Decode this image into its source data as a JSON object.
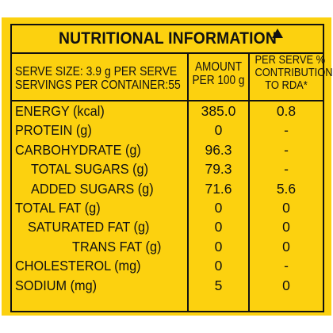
{
  "title": "NUTRITIONAL INFORMATION",
  "header": {
    "serve_size": "SERVE SIZE: 3.9 g PER SERVE",
    "servings": "SERVINGS PER CONTAINER:55",
    "amount_line1": "AMOUNT",
    "amount_line2": "PER 100 g",
    "rda_line1": "PER SERVE %",
    "rda_line2": "CONTRIBUTION",
    "rda_line3": "TO RDA*"
  },
  "rows": [
    {
      "nutrient": "ENERGY (kcal)",
      "amount": "385.0",
      "rda": "0.8"
    },
    {
      "nutrient": "PROTEIN (g)",
      "amount": "0",
      "rda": "-"
    },
    {
      "nutrient": "CARBOHYDRATE (g)",
      "amount": "96.3",
      "rda": "-"
    },
    {
      "nutrient": "TOTAL SUGARS (g)",
      "amount": "79.3",
      "rda": "-"
    },
    {
      "nutrient": "ADDED SUGARS (g)",
      "amount": "71.6",
      "rda": "5.6"
    },
    {
      "nutrient": "TOTAL FAT (g)",
      "amount": "0",
      "rda": "0"
    },
    {
      "nutrient": "SATURATED FAT (g)",
      "amount": "0",
      "rda": "0"
    },
    {
      "nutrient": "TRANS FAT (g)",
      "amount": "0",
      "rda": "0"
    },
    {
      "nutrient": "CHOLESTEROL (mg)",
      "amount": "0",
      "rda": "-"
    },
    {
      "nutrient": "SODIUM (mg)",
      "amount": "5",
      "rda": "0"
    }
  ],
  "colors": {
    "background": "#fcd10f",
    "text": "#111111"
  },
  "icons": {
    "title_mark": "triangle-mark-icon"
  }
}
